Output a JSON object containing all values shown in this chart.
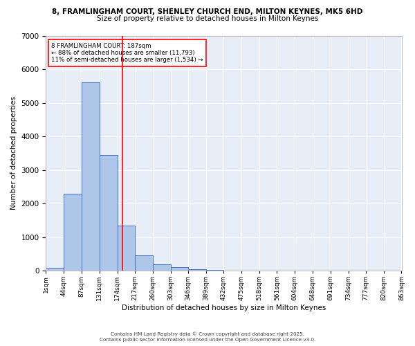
{
  "title_line1": "8, FRAMLINGHAM COURT, SHENLEY CHURCH END, MILTON KEYNES, MK5 6HD",
  "title_line2": "Size of property relative to detached houses in Milton Keynes",
  "xlabel": "Distribution of detached houses by size in Milton Keynes",
  "ylabel": "Number of detached properties",
  "bar_edges": [
    1,
    44,
    87,
    131,
    174,
    217,
    260,
    303,
    346,
    389,
    432,
    475,
    518,
    561,
    604,
    648,
    691,
    734,
    777,
    820,
    863
  ],
  "bar_heights": [
    80,
    2300,
    5600,
    3450,
    1350,
    450,
    190,
    100,
    50,
    30,
    0,
    0,
    0,
    0,
    0,
    0,
    0,
    0,
    0,
    0
  ],
  "bar_color": "#aec6e8",
  "bar_edgecolor": "#4472c4",
  "vline_x": 187,
  "vline_color": "red",
  "annotation_title": "8 FRAMLINGHAM COURT: 187sqm",
  "annotation_line2": "← 88% of detached houses are smaller (11,793)",
  "annotation_line3": "11% of semi-detached houses are larger (1,534) →",
  "annotation_box_color": "white",
  "annotation_box_edgecolor": "red",
  "ylim": [
    0,
    7000
  ],
  "yticks": [
    0,
    1000,
    2000,
    3000,
    4000,
    5000,
    6000,
    7000
  ],
  "tick_labels": [
    "1sqm",
    "44sqm",
    "87sqm",
    "131sqm",
    "174sqm",
    "217sqm",
    "260sqm",
    "303sqm",
    "346sqm",
    "389sqm",
    "432sqm",
    "475sqm",
    "518sqm",
    "561sqm",
    "604sqm",
    "648sqm",
    "691sqm",
    "734sqm",
    "777sqm",
    "820sqm",
    "863sqm"
  ],
  "background_color": "#e8eef8",
  "grid_color": "white",
  "footer_line1": "Contains HM Land Registry data © Crown copyright and database right 2025.",
  "footer_line2": "Contains public sector information licensed under the Open Government Licence v3.0."
}
